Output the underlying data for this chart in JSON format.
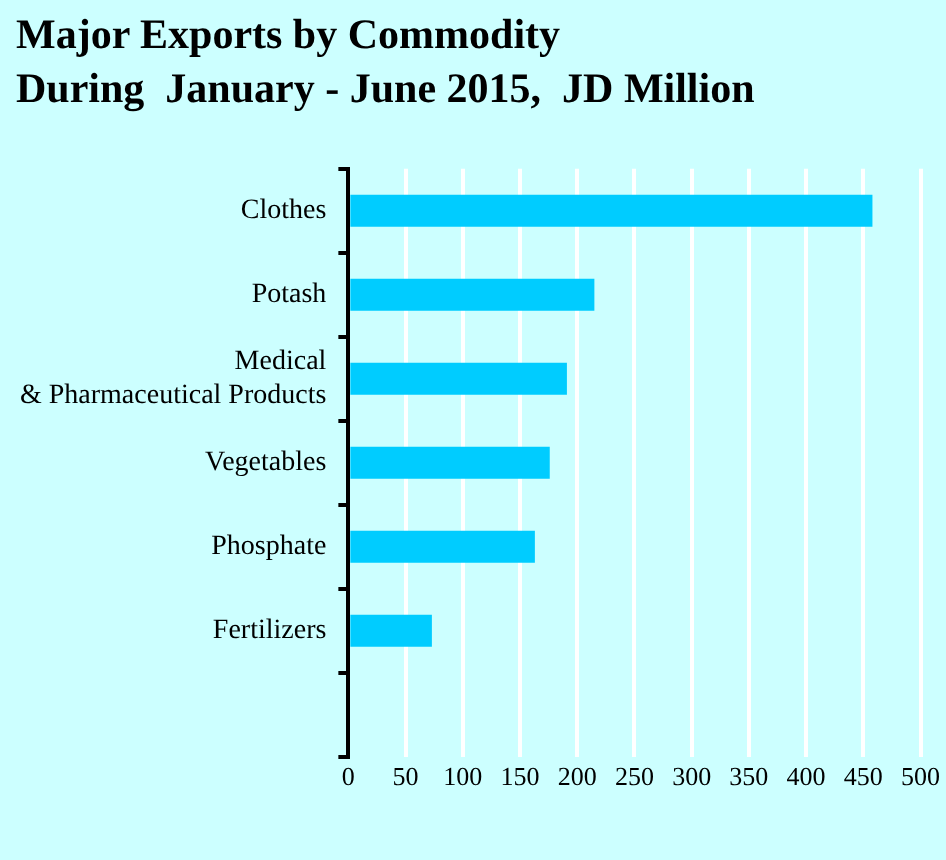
{
  "chart_data": {
    "type": "bar",
    "orientation": "horizontal",
    "title": "Major Exports by Commodity\nDuring  January - June 2015,  JD Million",
    "categories": [
      "Clothes",
      "Potash",
      "Medical & Pharmaceutical Products",
      "Vegetables",
      "Phosphate",
      "Fertilizers",
      null
    ],
    "values": [
      458,
      215,
      191,
      176,
      163,
      73,
      null
    ],
    "color": "#00ccff",
    "xlim": [
      0,
      500
    ],
    "xticks": [
      0,
      50,
      100,
      150,
      200,
      250,
      300,
      350,
      400,
      450,
      500
    ],
    "grid": "x"
  }
}
